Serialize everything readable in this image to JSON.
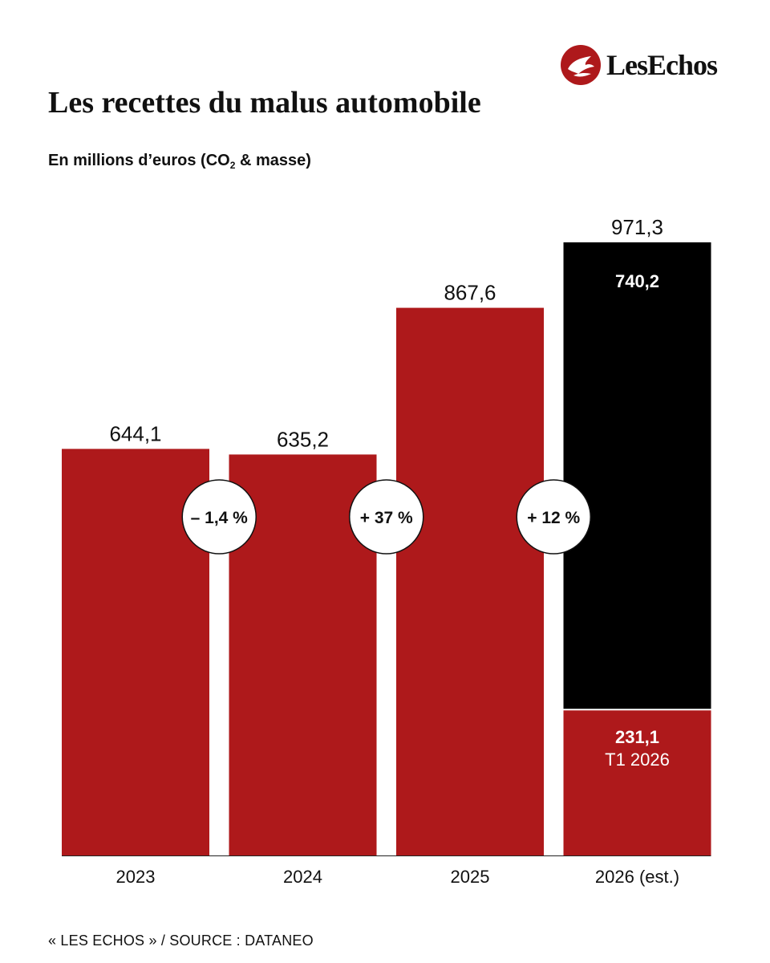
{
  "brand": {
    "name": "LesEchos"
  },
  "title": "Les recettes du malus automobile",
  "subtitle": {
    "prefix": "En millions d’euros (CO",
    "sub": "2",
    "suffix": " & masse)"
  },
  "source": "« LES ECHOS » / SOURCE :  DATANEO",
  "colors": {
    "red": "#ae191b",
    "black": "#000000",
    "text": "#111111",
    "white": "#ffffff"
  },
  "chart_data": {
    "type": "bar",
    "stacked": true,
    "categories": [
      "2023",
      "2024",
      "2025",
      "2026 (est.)"
    ],
    "ylim": [
      0,
      971.3
    ],
    "grid": false,
    "totals": [
      "644,1",
      "635,2",
      "867,6",
      "971,3"
    ],
    "series": [
      {
        "color": "#ae191b",
        "values": [
          644.1,
          635.2,
          867.6,
          231.1
        ]
      },
      {
        "color": "#000000",
        "values": [
          0,
          0,
          0,
          740.2
        ]
      }
    ],
    "segment_labels": [
      {
        "category": "2026 (est.)",
        "lines": [
          "740,2"
        ],
        "color": "#ffffff"
      },
      {
        "category": "2026 (est.)",
        "lines": [
          "231,1",
          "T1 2026"
        ],
        "color": "#ffffff"
      }
    ],
    "changes": [
      "– 1,4 %",
      "+ 37 %",
      "+ 12 %"
    ]
  }
}
